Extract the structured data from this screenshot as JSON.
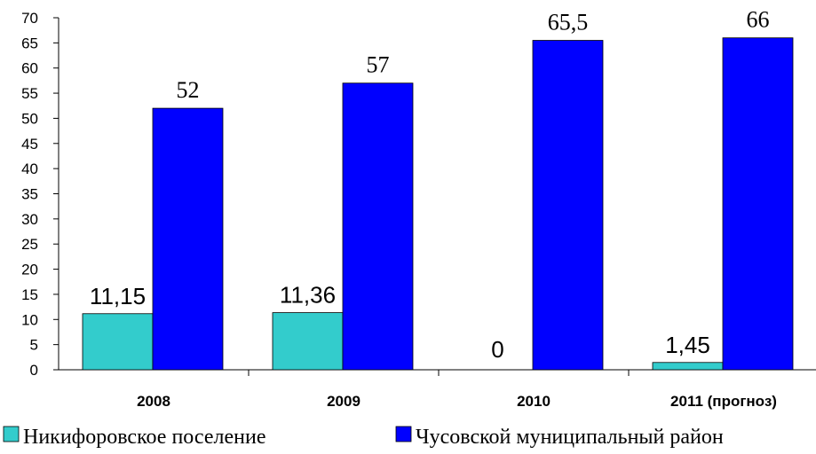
{
  "chart_data": {
    "type": "bar",
    "categories": [
      "2008",
      "2009",
      "2010",
      "2011 (прогноз)"
    ],
    "series": [
      {
        "name": "Никифоровское поселение",
        "values": [
          11.15,
          11.36,
          0,
          1.45
        ],
        "labels": [
          "11,15",
          "11,36",
          "0",
          "1,45"
        ],
        "color": "#33CCCC"
      },
      {
        "name": "Чусовской муниципальный район",
        "values": [
          52,
          57,
          65.5,
          66
        ],
        "labels": [
          "52",
          "57",
          "65,5",
          "66"
        ],
        "color": "#0000FF"
      }
    ],
    "ylim": [
      0,
      70
    ],
    "yticks": [
      0,
      5,
      10,
      15,
      20,
      25,
      30,
      35,
      40,
      45,
      50,
      55,
      60,
      65,
      70
    ],
    "title": "",
    "xlabel": "",
    "ylabel": "",
    "grid": false,
    "legend_position": "bottom"
  }
}
